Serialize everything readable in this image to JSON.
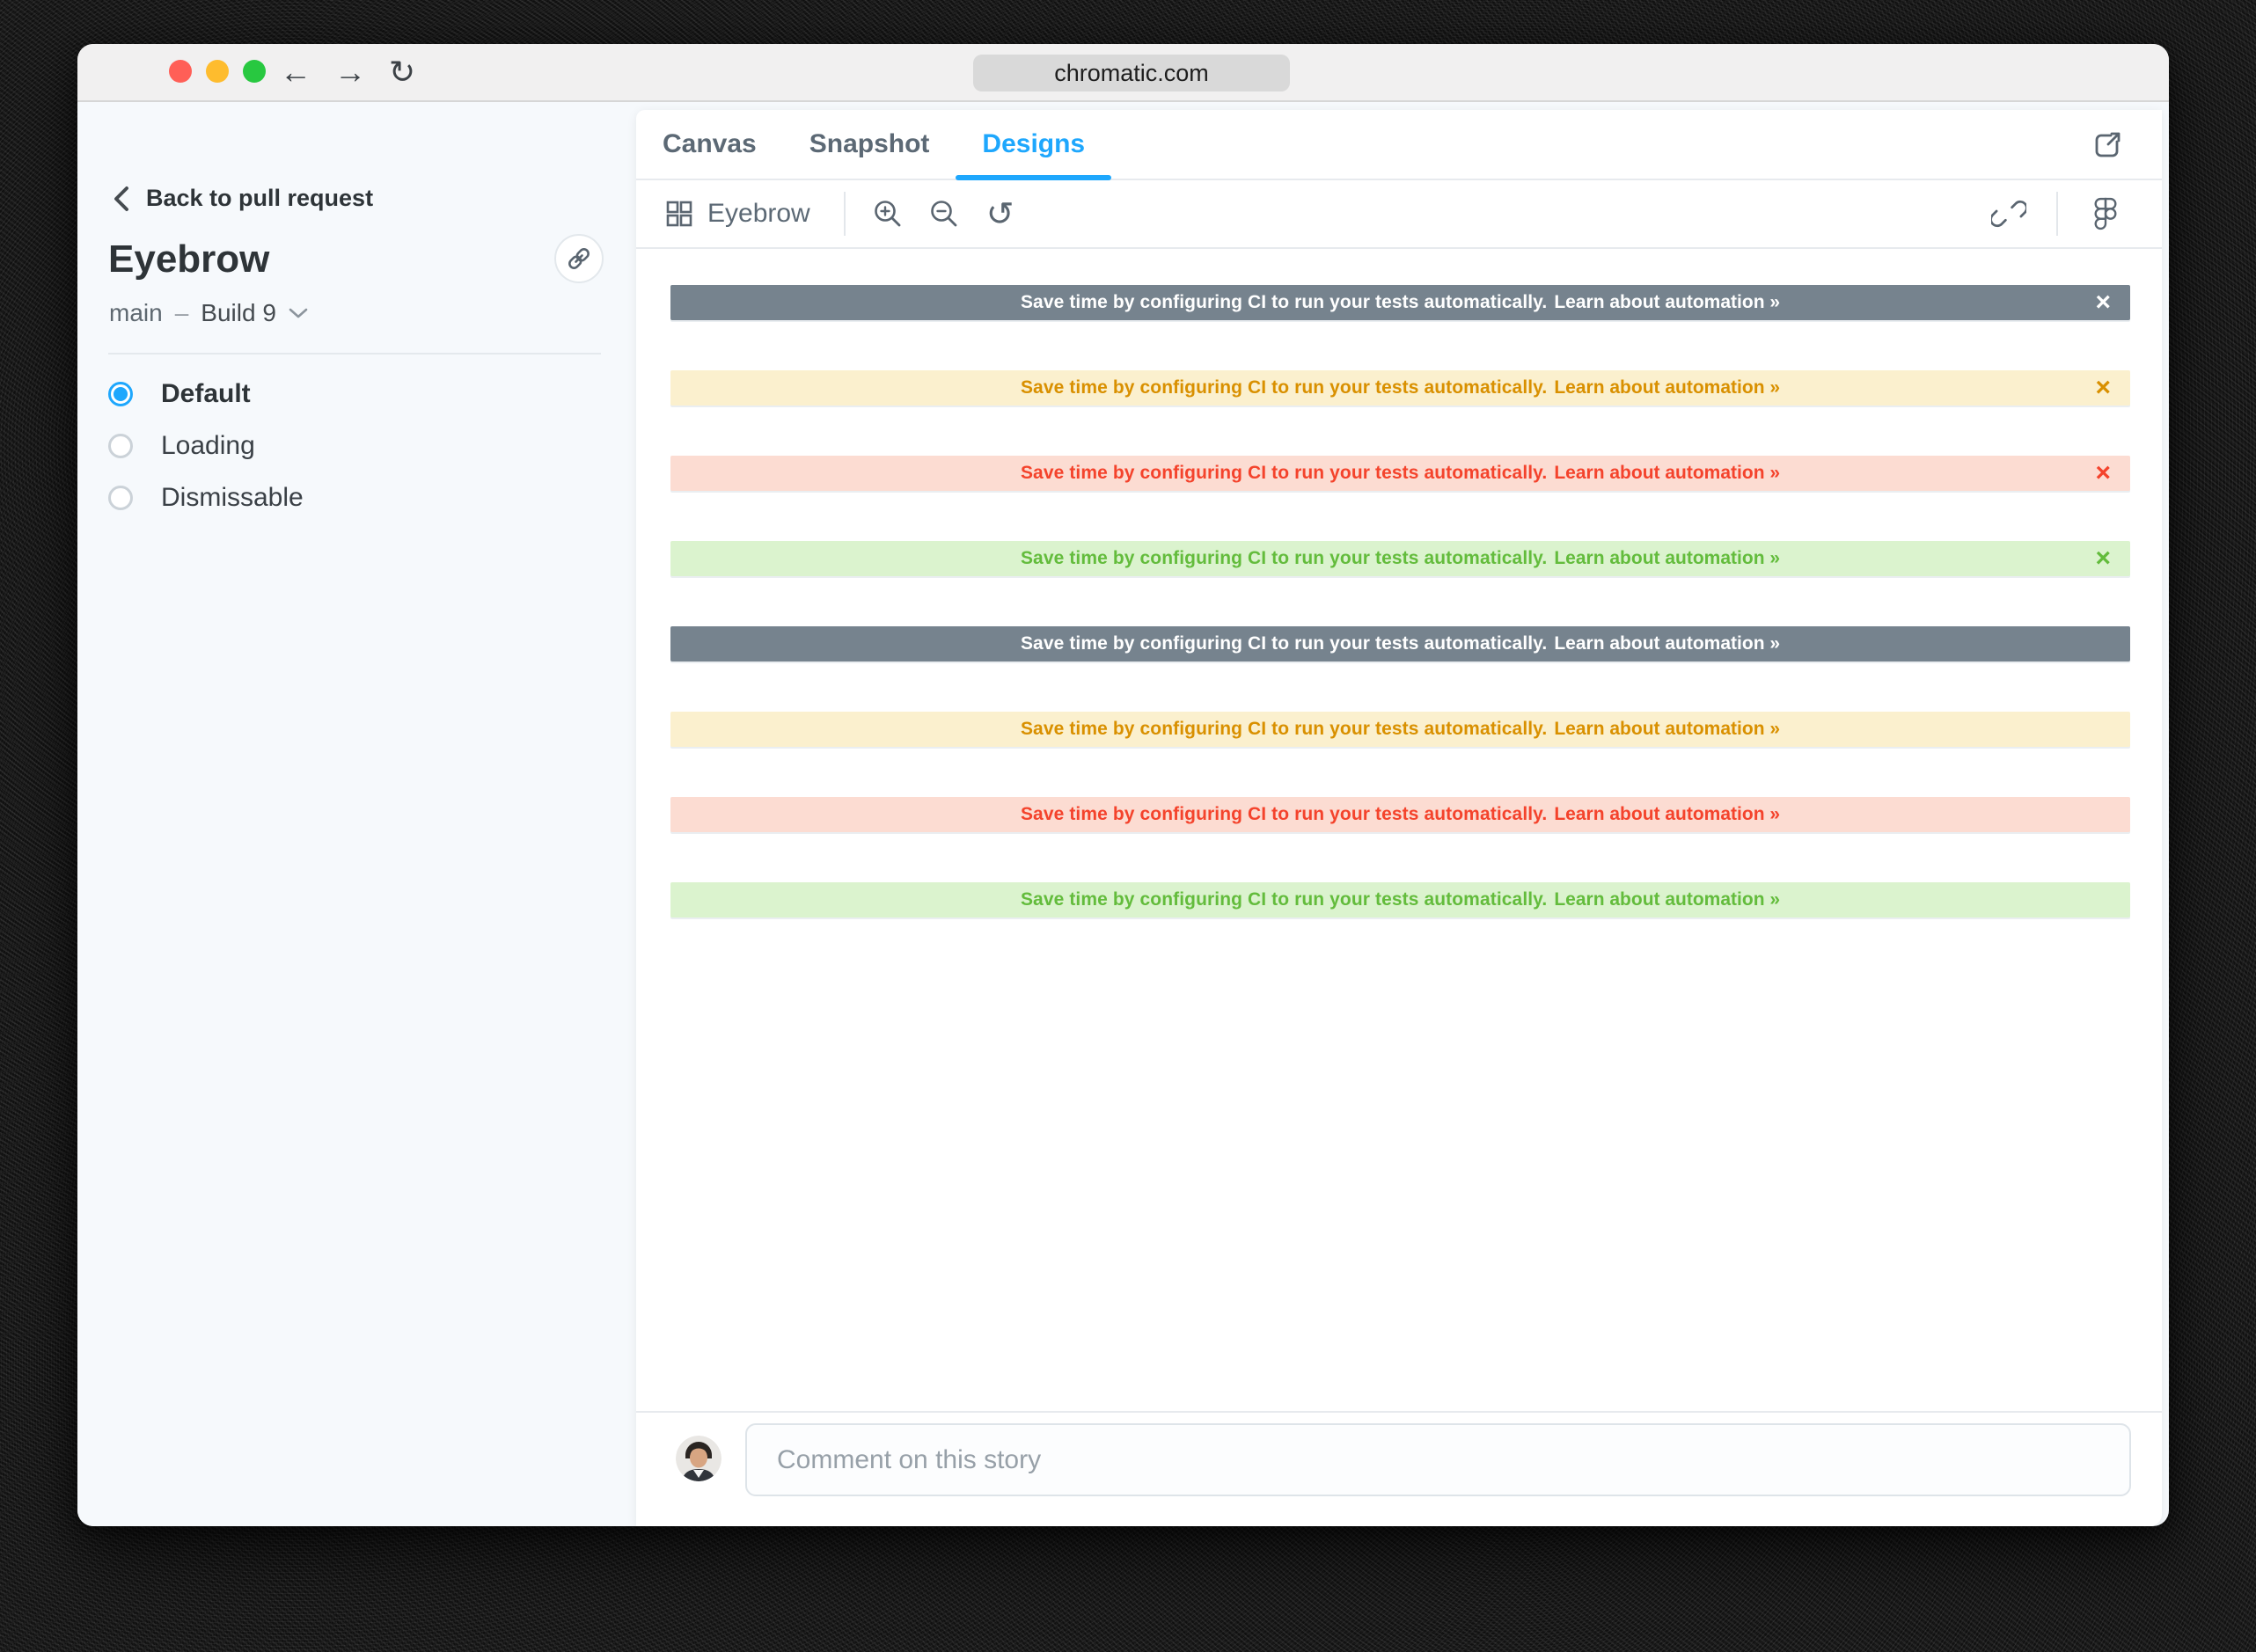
{
  "browser": {
    "url": "chromatic.com",
    "window_controls": {
      "close": "#FF5F57",
      "minimize": "#FEBC2E",
      "zoom": "#28C840"
    }
  },
  "icons": {
    "back": "←",
    "forward": "→",
    "refresh": "↻",
    "reset_zoom": "↺"
  },
  "sidebar": {
    "back_label": "Back to pull request",
    "title": "Eyebrow",
    "branch": "main",
    "dash": "–",
    "build_label": "Build 9",
    "variants": [
      {
        "label": "Default",
        "selected": true
      },
      {
        "label": "Loading",
        "selected": false
      },
      {
        "label": "Dismissable",
        "selected": false
      }
    ]
  },
  "main": {
    "tabs": [
      {
        "label": "Canvas",
        "active": false
      },
      {
        "label": "Snapshot",
        "active": false
      },
      {
        "label": "Designs",
        "active": true
      }
    ],
    "toolbar": {
      "component_label": "Eyebrow"
    },
    "story": {
      "message": "Save time by configuring CI to run your tests automatically.",
      "link_label": "Learn about automation »",
      "close_symbol": "×",
      "banners": [
        {
          "variant": "slate",
          "dismissable": true
        },
        {
          "variant": "gold",
          "dismissable": true
        },
        {
          "variant": "orange",
          "dismissable": true
        },
        {
          "variant": "green",
          "dismissable": true
        },
        {
          "variant": "slate",
          "dismissable": false
        },
        {
          "variant": "gold",
          "dismissable": false
        },
        {
          "variant": "orange",
          "dismissable": false
        },
        {
          "variant": "green",
          "dismissable": false
        }
      ]
    },
    "comment": {
      "placeholder": "Comment on this story"
    }
  },
  "colors": {
    "accent": "#1EA7FD",
    "banner_slate_bg": "#76838E",
    "banner_slate_fg": "#FFFFFF",
    "banner_gold_bg": "#FBF0CE",
    "banner_gold_fg": "#D99000",
    "banner_orange_bg": "#FCDCD2",
    "banner_orange_fg": "#F4432C",
    "banner_green_bg": "#DBF3CE",
    "banner_green_fg": "#63BC3C"
  }
}
